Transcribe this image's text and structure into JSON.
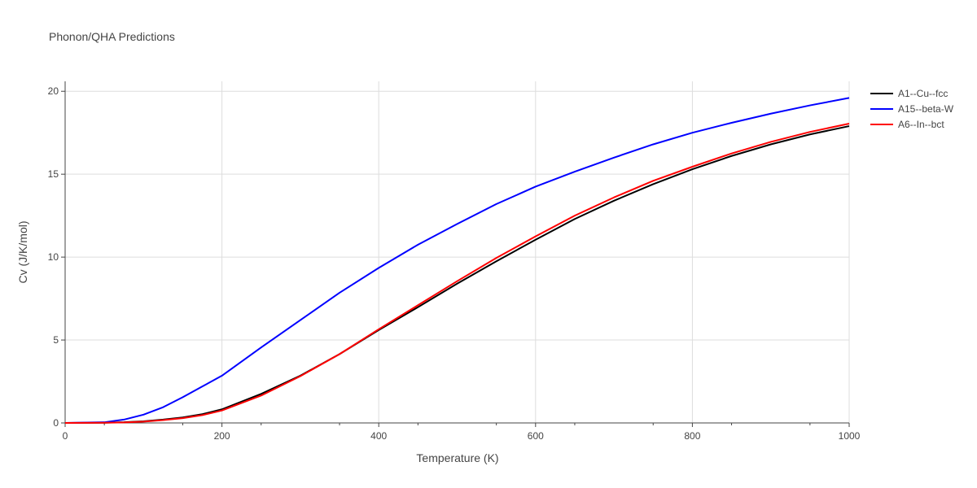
{
  "chart_data": {
    "type": "line",
    "title": "Phonon/QHA Predictions",
    "xlabel": "Temperature (K)",
    "ylabel": "Cv (J/K/mol)",
    "xlim": [
      0,
      1000
    ],
    "ylim": [
      0,
      20.6
    ],
    "xticks": [
      0,
      200,
      400,
      600,
      800,
      1000
    ],
    "yticks": [
      0,
      5,
      10,
      15,
      20
    ],
    "grid": true,
    "legend_position": "top-right",
    "x": [
      0,
      50,
      75,
      100,
      125,
      150,
      175,
      200,
      250,
      300,
      350,
      400,
      450,
      500,
      550,
      600,
      650,
      700,
      750,
      800,
      850,
      900,
      950,
      1000
    ],
    "series": [
      {
        "name": "A1--Cu--fcc",
        "color": "#000000",
        "values": [
          0,
          0.01,
          0.04,
          0.1,
          0.2,
          0.33,
          0.53,
          0.82,
          1.75,
          2.85,
          4.15,
          5.6,
          6.98,
          8.4,
          9.75,
          11.05,
          12.3,
          13.4,
          14.4,
          15.3,
          16.1,
          16.8,
          17.4,
          17.9
        ]
      },
      {
        "name": "A15--beta-W",
        "color": "#0000ff",
        "values": [
          0,
          0.04,
          0.2,
          0.5,
          0.95,
          1.55,
          2.2,
          2.85,
          4.55,
          6.2,
          7.85,
          9.35,
          10.75,
          12.0,
          13.2,
          14.25,
          15.15,
          16.0,
          16.8,
          17.5,
          18.1,
          18.65,
          19.15,
          19.6
        ]
      },
      {
        "name": "A6--In--bct",
        "color": "#ff0000",
        "values": [
          0,
          0.01,
          0.03,
          0.08,
          0.17,
          0.29,
          0.47,
          0.75,
          1.65,
          2.82,
          4.15,
          5.65,
          7.1,
          8.55,
          9.95,
          11.25,
          12.5,
          13.6,
          14.6,
          15.45,
          16.25,
          16.95,
          17.55,
          18.05
        ]
      }
    ]
  }
}
